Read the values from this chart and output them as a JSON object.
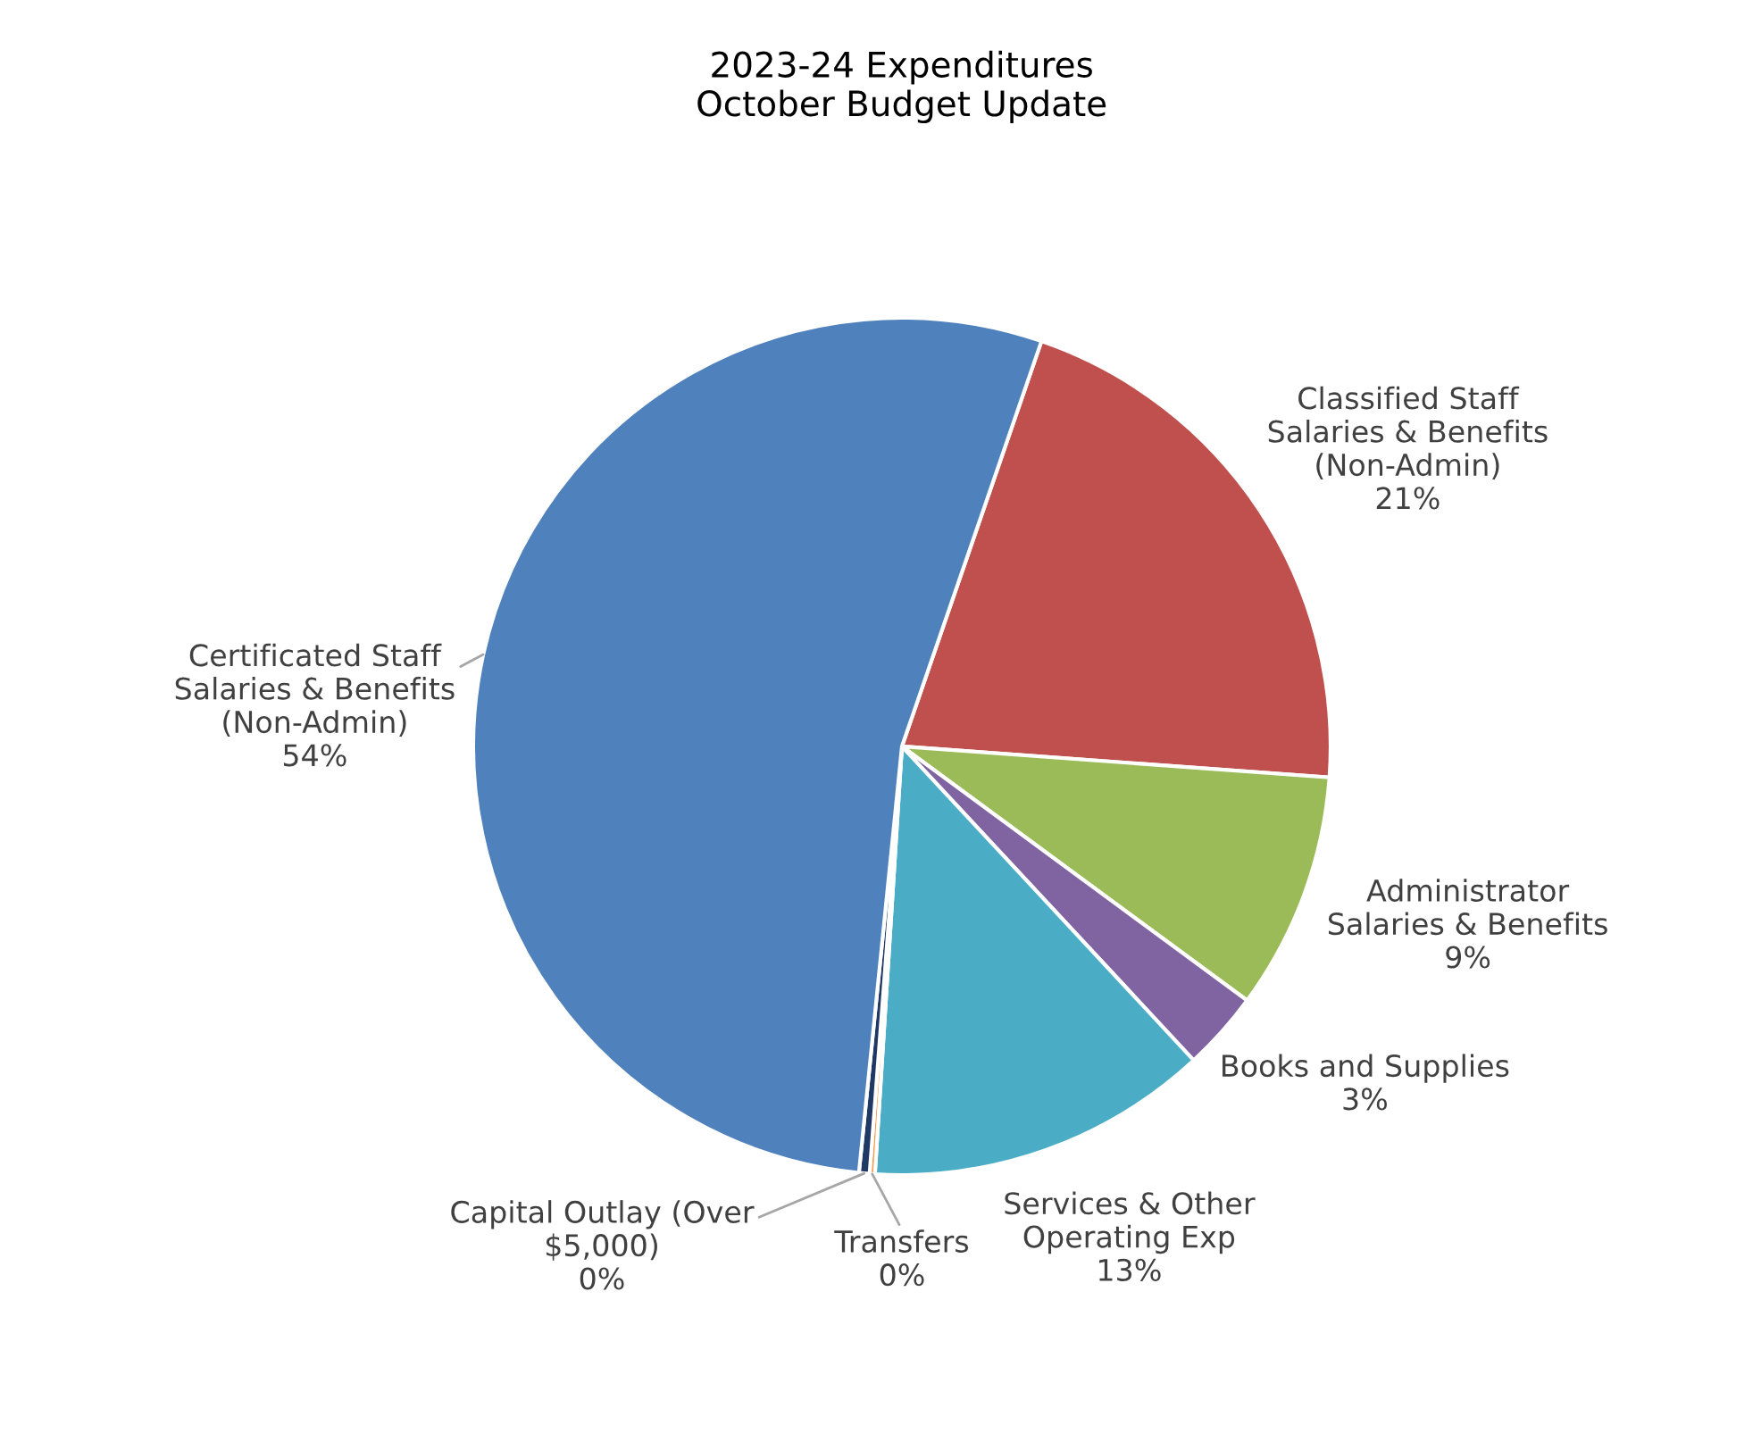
{
  "chart_data": {
    "type": "pie",
    "title": "2023-24 Expenditures\nOctober Budget Update",
    "categories": [
      "Classified Staff\nSalaries & Benefits\n(Non-Admin)",
      "Administrator\nSalaries & Benefits",
      "Books and Supplies",
      "Services & Other\nOperating Exp",
      "Transfers",
      "Capital Outlay (Over\n$5,000)",
      "Certificated Staff\nSalaries & Benefits\n(Non-Admin)"
    ],
    "values": [
      21,
      9,
      3,
      13,
      0.2,
      0.4,
      54
    ],
    "value_labels": [
      "21%",
      "9%",
      "3%",
      "13%",
      "0%",
      "0%",
      "54%"
    ],
    "colors": [
      "#c0504d",
      "#9bbb59",
      "#8064a2",
      "#4bacc6",
      "#f79646",
      "#1f3864",
      "#4f81bd"
    ]
  }
}
